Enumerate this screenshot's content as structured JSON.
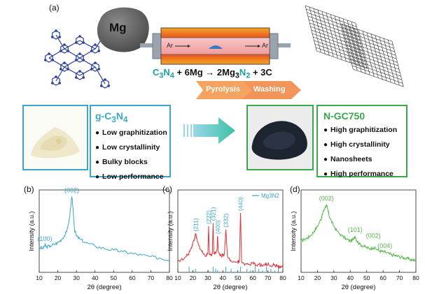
{
  "panel_a": {
    "tag": "(a)",
    "mg_label": "Mg",
    "ar_in": "Ar",
    "ar_out": "Ar",
    "equation": {
      "part1": "C",
      "sub1": "3",
      "part2": "N",
      "sub2": "4",
      "part3": " + 6Mg → 2Mg",
      "sub3": "3",
      "part4": "N",
      "sub4": "2",
      "part5": " + 3C"
    },
    "steps": [
      "Pyrolysis",
      "Washing"
    ]
  },
  "left_box": {
    "title_main": "g-C",
    "title_sub1": "3",
    "title_mid": "N",
    "title_sub2": "4",
    "properties": [
      "Low graphitization",
      "Low crystallinity",
      "Bulky blocks",
      "Low performance"
    ],
    "color": "#3aa7c9"
  },
  "right_box": {
    "title": "N-GC750",
    "properties": [
      "High graphitization",
      "High crystallinity",
      "Nanosheets",
      "High performance"
    ],
    "color": "#3aa84a"
  },
  "chart_data": [
    {
      "panel": "(b)",
      "type": "line",
      "color": "#3aa7c9",
      "xlabel": "2θ (degree)",
      "ylabel": "Intensity (a.u.)",
      "xlim": [
        10,
        80
      ],
      "xticks": [
        10,
        20,
        30,
        40,
        50,
        60,
        70,
        80
      ],
      "annotations": [
        {
          "label": "(100)",
          "x": 13
        },
        {
          "label": "(002)",
          "x": 27.5
        }
      ],
      "series": [
        {
          "x": [
            10,
            12,
            13,
            14,
            16,
            18,
            20,
            22,
            24,
            25,
            26,
            27,
            27.5,
            28,
            29,
            30,
            32,
            35,
            40,
            45,
            50,
            55,
            60,
            65,
            70,
            75,
            80
          ],
          "y": [
            0.3,
            0.29,
            0.33,
            0.31,
            0.32,
            0.34,
            0.36,
            0.4,
            0.46,
            0.52,
            0.62,
            0.8,
            0.92,
            0.82,
            0.52,
            0.44,
            0.4,
            0.36,
            0.32,
            0.29,
            0.27,
            0.25,
            0.23,
            0.21,
            0.19,
            0.17,
            0.15
          ]
        }
      ]
    },
    {
      "panel": "(c)",
      "type": "line",
      "color": "#e0333a",
      "legend": "Mg3N2",
      "legend_color": "#3aa7c9",
      "xlabel": "2θ (degree)",
      "ylabel": "Intensity (a.u.)",
      "xlim": [
        10,
        80
      ],
      "xticks": [
        10,
        20,
        30,
        40,
        50,
        60,
        70,
        80
      ],
      "annotations": [
        {
          "label": "(211)",
          "x": 21.8
        },
        {
          "label": "(222)",
          "x": 30.5
        },
        {
          "label": "(321)",
          "x": 33.5
        },
        {
          "label": "(400)",
          "x": 36.5
        },
        {
          "label": "(332)",
          "x": 42.0
        },
        {
          "label": "(440)",
          "x": 51.8
        }
      ],
      "series": [
        {
          "x": [
            10,
            14,
            17,
            19,
            20,
            21,
            21.8,
            23,
            25,
            27,
            29,
            30,
            30.5,
            31,
            32,
            33,
            33.5,
            34,
            35,
            36,
            36.5,
            37,
            39,
            41,
            42,
            43,
            45,
            48,
            50,
            51,
            51.8,
            52.5,
            55,
            58,
            60,
            62,
            64,
            66,
            68,
            70,
            72,
            74,
            76,
            78,
            80
          ],
          "y": [
            0.14,
            0.16,
            0.22,
            0.3,
            0.36,
            0.4,
            0.47,
            0.38,
            0.28,
            0.22,
            0.2,
            0.22,
            0.56,
            0.22,
            0.21,
            0.23,
            0.6,
            0.23,
            0.24,
            0.26,
            0.44,
            0.24,
            0.2,
            0.22,
            0.52,
            0.2,
            0.15,
            0.13,
            0.12,
            0.14,
            0.72,
            0.13,
            0.1,
            0.09,
            0.11,
            0.09,
            0.1,
            0.08,
            0.09,
            0.1,
            0.08,
            0.09,
            0.08,
            0.07,
            0.06
          ]
        }
      ],
      "reference_peaks": [
        17.5,
        21.8,
        30.5,
        33.5,
        35.2,
        36.5,
        42.0,
        45.5,
        49.8,
        51.8,
        56.0,
        58.5,
        61.5,
        64.0,
        66.5,
        69.0,
        72.0,
        74.5,
        77.0
      ]
    },
    {
      "panel": "(d)",
      "type": "line",
      "color": "#55b84a",
      "xlabel": "2θ (degree)",
      "ylabel": "Intensity (a.u.)",
      "xlim": [
        10,
        80
      ],
      "xticks": [
        10,
        20,
        30,
        40,
        50,
        60,
        70,
        80
      ],
      "annotations": [
        {
          "label": "(002)",
          "x": 25.5
        },
        {
          "label": "(101)",
          "x": 43
        },
        {
          "label": "(002)",
          "x": 54
        },
        {
          "label": "(004)",
          "x": 56
        }
      ],
      "series": [
        {
          "x": [
            10,
            12,
            14,
            16,
            18,
            20,
            22,
            23,
            24,
            25,
            25.5,
            26,
            27,
            28,
            30,
            32,
            35,
            38,
            40,
            42,
            43,
            44,
            46,
            48,
            50,
            52,
            54,
            56,
            58,
            60,
            62,
            64,
            66,
            68,
            70,
            72,
            74,
            76,
            78,
            80
          ],
          "y": [
            0.38,
            0.4,
            0.42,
            0.45,
            0.5,
            0.56,
            0.64,
            0.7,
            0.76,
            0.8,
            0.82,
            0.78,
            0.7,
            0.64,
            0.56,
            0.5,
            0.44,
            0.4,
            0.38,
            0.4,
            0.44,
            0.38,
            0.34,
            0.32,
            0.3,
            0.29,
            0.3,
            0.28,
            0.26,
            0.25,
            0.24,
            0.22,
            0.21,
            0.2,
            0.19,
            0.18,
            0.17,
            0.16,
            0.15,
            0.14
          ]
        }
      ]
    }
  ]
}
